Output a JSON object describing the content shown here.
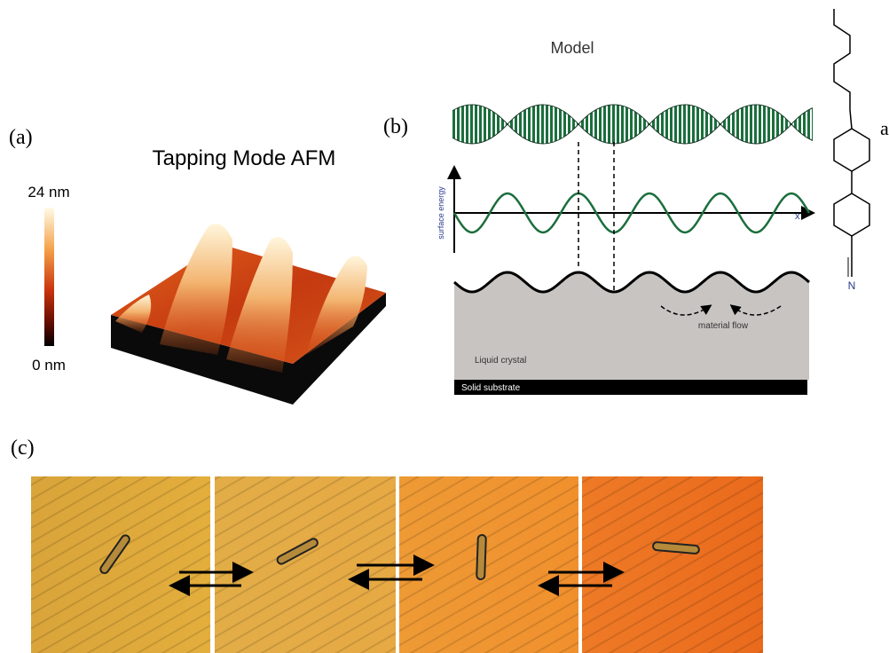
{
  "panel_a": {
    "label": "(a)",
    "title": "Tapping Mode AFM",
    "colorbar_max": "24 nm",
    "colorbar_min": "0 nm"
  },
  "panel_b": {
    "label": "(b)",
    "title": "Model",
    "y_axis_label": "surface energy",
    "x_axis_label": "x",
    "flow_label": "material flow",
    "liquid_label": "Liquid crystal",
    "substrate_label": "Solid substrate",
    "nitrogen": "N",
    "side_label": "a"
  },
  "panel_c": {
    "label": "(c)"
  }
}
